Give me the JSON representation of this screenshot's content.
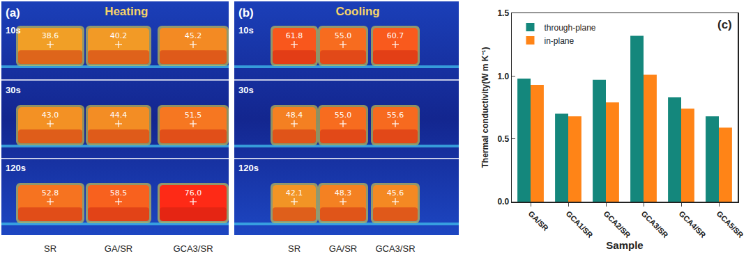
{
  "chart_data": {
    "type": "bar",
    "annotation": "(c)",
    "x_label": "Sample",
    "y_label": "Thermal conductivity(W m K⁻¹)",
    "categories": [
      "GA/SR",
      "GCA1/SR",
      "GCA2/SR",
      "GCA3/SR",
      "GCA4/SR",
      "GCA5/SR"
    ],
    "series": [
      {
        "name": "through-plane",
        "color": "#14877c",
        "values": [
          0.98,
          0.7,
          0.97,
          1.32,
          0.83,
          0.68
        ]
      },
      {
        "name": "in-plane",
        "color": "#ff8417",
        "values": [
          0.93,
          0.68,
          0.79,
          1.01,
          0.74,
          0.59
        ]
      }
    ],
    "ylim": [
      0,
      1.5
    ],
    "yticks": [
      {
        "value": 0,
        "label": "0.0"
      },
      0.5,
      {
        "value": 1,
        "label": "1.0"
      },
      1.5
    ],
    "grid": false,
    "legend": "upper left"
  },
  "thermal_panels": [
    {
      "label": "(a)",
      "title": "Heating",
      "samples": [
        "SR",
        "GA/SR",
        "GCA3/SR"
      ],
      "rows": [
        {
          "time": "10s",
          "temps": [
            "38.6",
            "40.2",
            "45.2"
          ]
        },
        {
          "time": "30s",
          "temps": [
            "43.0",
            "44.4",
            "51.5"
          ]
        },
        {
          "time": "120s",
          "temps": [
            "52.8",
            "58.5",
            "76.0"
          ]
        }
      ]
    },
    {
      "label": "(b)",
      "title": "Cooling",
      "samples": [
        "SR",
        "GA/SR",
        "GCA3/SR"
      ],
      "rows": [
        {
          "time": "10s",
          "temps": [
            "61.8",
            "55.0",
            "60.7"
          ]
        },
        {
          "time": "30s",
          "temps": [
            "48.4",
            "55.0",
            "55.6"
          ]
        },
        {
          "time": "120s",
          "temps": [
            "42.1",
            "48.3",
            "45.6"
          ]
        }
      ]
    }
  ]
}
